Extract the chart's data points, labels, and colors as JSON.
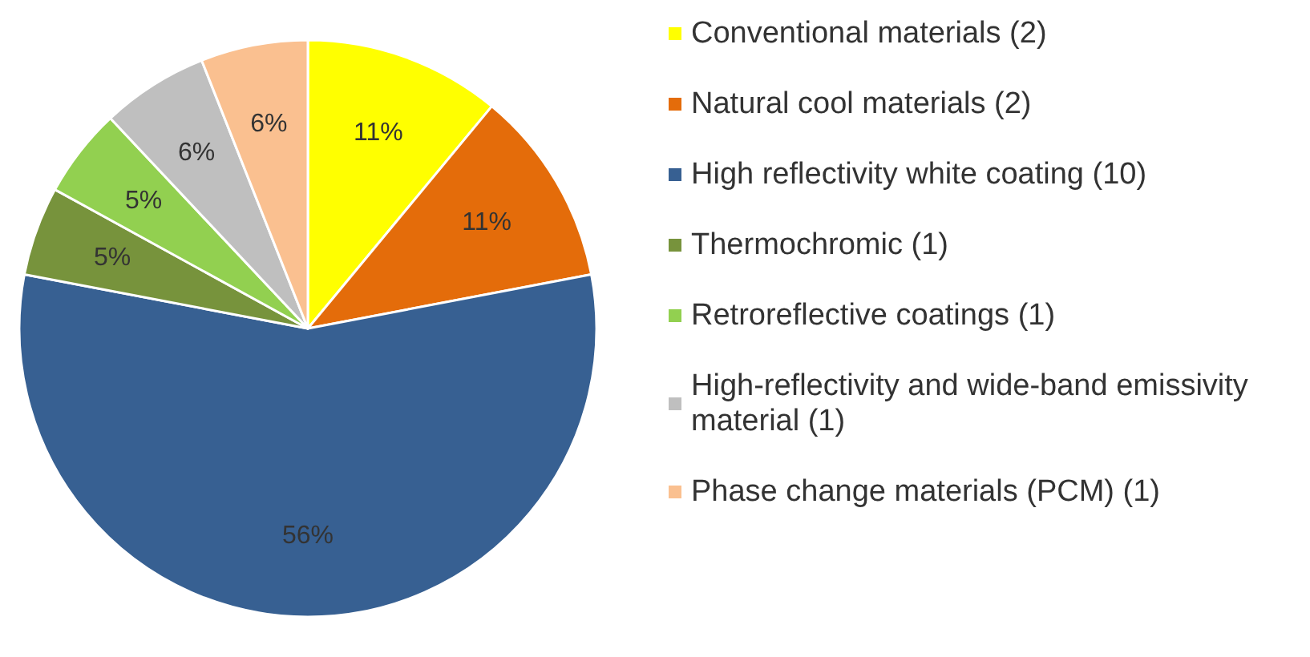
{
  "chart_data": {
    "type": "pie",
    "categories": [
      "Conventional materials (2)",
      "Natural cool materials (2)",
      "High reflectivity white coating (10)",
      "Thermochromic (1)",
      "Retroreflective coatings (1)",
      "High-reflectivity and wide-band emissivity material (1)",
      "Phase change materials (PCM) (1)"
    ],
    "values": [
      11,
      11,
      56,
      5,
      5,
      6,
      6
    ],
    "value_labels": [
      "11%",
      "11%",
      "56%",
      "5%",
      "5%",
      "6%",
      "6%"
    ],
    "colors": [
      "#ffff00",
      "#e46c0a",
      "#376092",
      "#77933c",
      "#92d050",
      "#bfbfbf",
      "#fac090"
    ],
    "legend": "right"
  }
}
